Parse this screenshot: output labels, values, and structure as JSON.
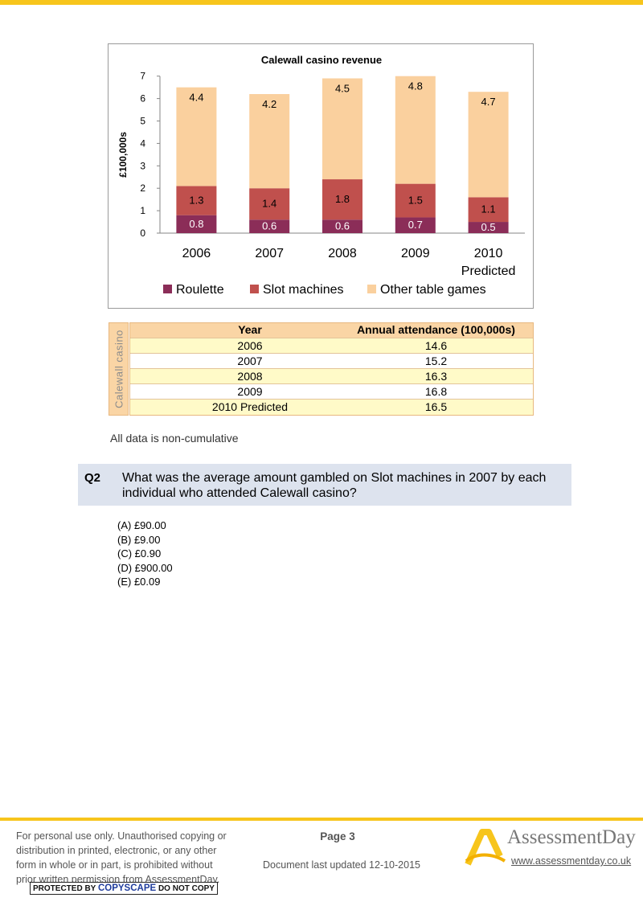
{
  "chart_data": {
    "type": "bar",
    "stacked": true,
    "title": "Calewall casino revenue",
    "ylabel": "£100,000s",
    "xlabel": "",
    "ylim": [
      0,
      7
    ],
    "yticks": [
      "0",
      "1",
      "2",
      "3",
      "4",
      "5",
      "6",
      "7"
    ],
    "categories": [
      "2006",
      "2007",
      "2008",
      "2009",
      "2010\nPredicted"
    ],
    "series": [
      {
        "name": "Roulette",
        "values": [
          0.8,
          0.6,
          0.6,
          0.7,
          0.5
        ],
        "color": "#8b2d58"
      },
      {
        "name": "Slot machines",
        "values": [
          1.3,
          1.4,
          1.8,
          1.5,
          1.1
        ],
        "color": "#c0504d"
      },
      {
        "name": "Other table games",
        "values": [
          4.4,
          4.2,
          4.5,
          4.8,
          4.7
        ],
        "color": "#fad09e"
      }
    ],
    "legend_position": "bottom",
    "grid": false
  },
  "attendance_table": {
    "side_label": "Calewall casino",
    "headers": [
      "Year",
      "Annual attendance (100,000s)"
    ],
    "rows": [
      [
        "2006",
        "14.6"
      ],
      [
        "2007",
        "15.2"
      ],
      [
        "2008",
        "16.3"
      ],
      [
        "2009",
        "16.8"
      ],
      [
        "2010 Predicted",
        "16.5"
      ]
    ]
  },
  "note": "All data is non-cumulative",
  "question": {
    "number": "Q2",
    "text": "What was the average amount gambled on Slot machines in 2007 by each individual who attended Calewall casino?",
    "options": [
      "(A)  £90.00",
      "(B)  £9.00",
      "(C)  £0.90",
      "(D)  £900.00",
      "(E)  £0.09"
    ]
  },
  "footer": {
    "disclaimer": "For personal use only. Unauthorised copying or distribution in printed, electronic, or any other form in whole or in part, is prohibited without prior written permission from AssessmentDay.",
    "copyscape_prefix": "PROTECTED BY ",
    "copyscape_brand": "COPYSCAPE",
    "copyscape_suffix": " DO NOT COPY",
    "page": "Page 3",
    "updated": "Document last updated 12-10-2015",
    "brand": "AssessmentDay",
    "website": "www.assessmentday.co.uk",
    "accent_color": "#f7c51c"
  }
}
